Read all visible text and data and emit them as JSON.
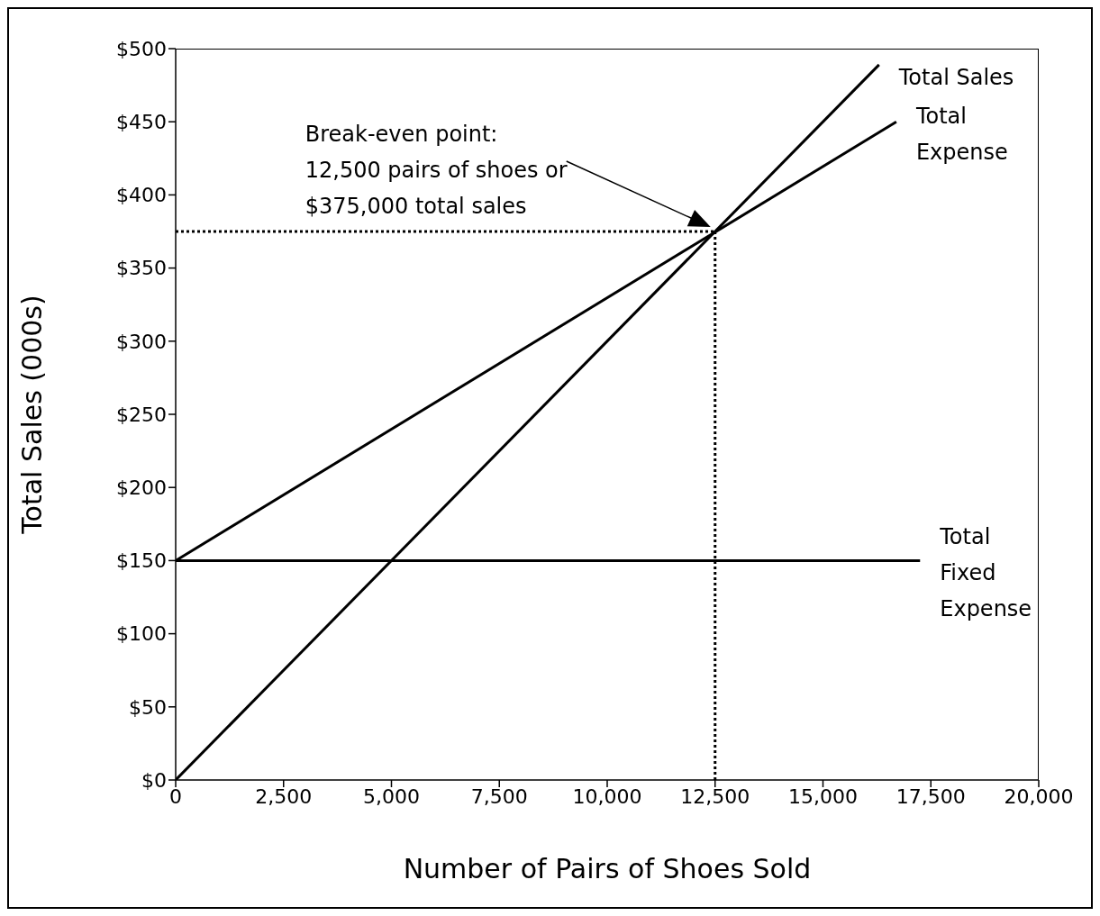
{
  "chart_data": {
    "type": "line",
    "xlabel": "Number of Pairs of Shoes Sold",
    "ylabel": "Total Sales (000s)",
    "series": [
      {
        "name": "Total Sales",
        "color": "#000000",
        "x": [
          0,
          16300
        ],
        "values": [
          0,
          489
        ]
      },
      {
        "name": "Total\nExpense",
        "color": "#000000",
        "x": [
          0,
          16700
        ],
        "values": [
          150,
          450
        ]
      },
      {
        "name": "Total\nFixed\nExpense",
        "color": "#000000",
        "x": [
          0,
          17250
        ],
        "values": [
          150,
          150
        ]
      }
    ],
    "xlim": [
      0,
      20000
    ],
    "xticks": [
      0,
      {
        "value": 2500,
        "label": "2,500"
      },
      {
        "value": 5000,
        "label": "5,000"
      },
      {
        "value": 7500,
        "label": "7,500"
      },
      {
        "value": 10000,
        "label": "10,000"
      },
      {
        "value": 12500,
        "label": "12,500"
      },
      {
        "value": 15000,
        "label": "15,000"
      },
      {
        "value": 17500,
        "label": "17,500"
      },
      {
        "value": 20000,
        "label": "20,000"
      }
    ],
    "ylim": [
      0,
      500
    ],
    "yticks": [
      {
        "value": 0,
        "label": "$0"
      },
      {
        "value": 50,
        "label": "$50"
      },
      {
        "value": 100,
        "label": "$100"
      },
      {
        "value": 150,
        "label": "$150"
      },
      {
        "value": 200,
        "label": "$200"
      },
      {
        "value": 250,
        "label": "$250"
      },
      {
        "value": 300,
        "label": "$300"
      },
      {
        "value": 350,
        "label": "$350"
      },
      {
        "value": 400,
        "label": "$400"
      },
      {
        "value": 450,
        "label": "$450"
      },
      {
        "value": 500,
        "label": "$500"
      }
    ],
    "ref_lines": [
      {
        "axis": "y",
        "value": 375,
        "color": "#000000",
        "line_style": "dotted"
      },
      {
        "axis": "x",
        "value": 12500,
        "color": "#000000",
        "line_style": "dotted"
      }
    ],
    "annotations": [
      "Break-even point:\n12,500 pairs of shoes or\n$375,000 total sales"
    ],
    "grid": false,
    "legend": false,
    "marker": "none",
    "line_style": "solid"
  }
}
